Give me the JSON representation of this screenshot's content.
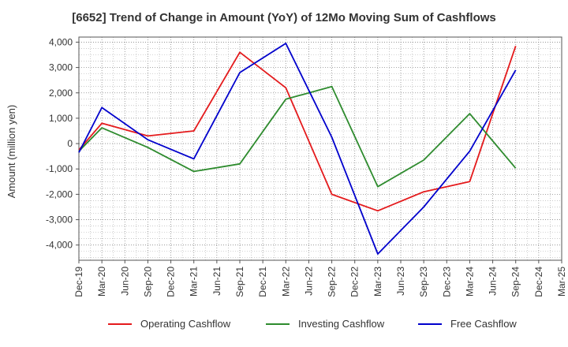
{
  "chart_data": {
    "type": "line",
    "title": "[6652]  Trend of Change in Amount (YoY) of 12Mo Moving Sum of Cashflows",
    "xlabel": "",
    "ylabel": "Amount (million yen)",
    "ylim": [
      -4600,
      4200
    ],
    "yticks": [
      -4000,
      -3000,
      -2000,
      -1000,
      0,
      1000,
      2000,
      3000,
      4000
    ],
    "ytick_labels": [
      "-4,000",
      "-3,000",
      "-2,000",
      "-1,000",
      "0",
      "1,000",
      "2,000",
      "3,000",
      "4,000"
    ],
    "categories": [
      "Dec-19",
      "Mar-20",
      "Jun-20",
      "Sep-20",
      "Dec-20",
      "Mar-21",
      "Jun-21",
      "Sep-21",
      "Dec-21",
      "Mar-22",
      "Jun-22",
      "Sep-22",
      "Dec-22",
      "Mar-23",
      "Jun-23",
      "Sep-23",
      "Dec-23",
      "Mar-24",
      "Jun-24",
      "Sep-24",
      "Dec-24",
      "Mar-25"
    ],
    "grid": true,
    "legend_position": "bottom",
    "series": [
      {
        "name": "Operating Cashflow",
        "color": "#e41a1c",
        "points": [
          [
            0,
            -250
          ],
          [
            1,
            800
          ],
          [
            3,
            300
          ],
          [
            5,
            500
          ],
          [
            7,
            3600
          ],
          [
            9,
            2200
          ],
          [
            11,
            -2000
          ],
          [
            13,
            -2650
          ],
          [
            15,
            -1900
          ],
          [
            17,
            -1500
          ],
          [
            19,
            3850
          ]
        ]
      },
      {
        "name": "Investing Cashflow",
        "color": "#2e8b2e",
        "points": [
          [
            0,
            -300
          ],
          [
            1,
            620
          ],
          [
            3,
            -150
          ],
          [
            5,
            -1100
          ],
          [
            7,
            -800
          ],
          [
            9,
            1750
          ],
          [
            11,
            2250
          ],
          [
            13,
            -1700
          ],
          [
            15,
            -650
          ],
          [
            17,
            1180
          ],
          [
            19,
            -970
          ]
        ]
      },
      {
        "name": "Free Cashflow",
        "color": "#0000cc",
        "points": [
          [
            0,
            -350
          ],
          [
            1,
            1420
          ],
          [
            3,
            150
          ],
          [
            5,
            -600
          ],
          [
            7,
            2800
          ],
          [
            9,
            3950
          ],
          [
            11,
            250
          ],
          [
            13,
            -4350
          ],
          [
            15,
            -2500
          ],
          [
            17,
            -300
          ],
          [
            19,
            2900
          ]
        ]
      }
    ]
  }
}
